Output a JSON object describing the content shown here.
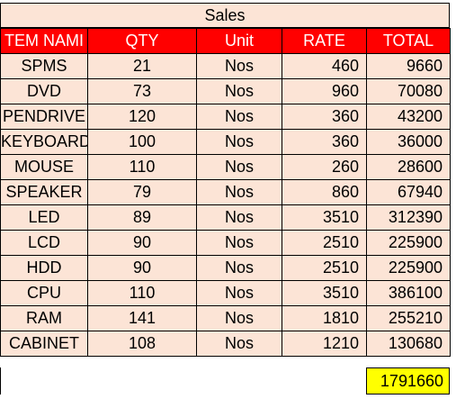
{
  "title": "Sales",
  "columns": [
    "TEM NAMI",
    "QTY",
    "Unit",
    "RATE",
    "TOTAL"
  ],
  "rows": [
    {
      "item": "SPMS",
      "qty": "21",
      "unit": "Nos",
      "rate": "460",
      "total": "9660"
    },
    {
      "item": "DVD",
      "qty": "73",
      "unit": "Nos",
      "rate": "960",
      "total": "70080"
    },
    {
      "item": "PENDRIVE",
      "qty": "120",
      "unit": "Nos",
      "rate": "360",
      "total": "43200"
    },
    {
      "item": "KEYBOARD",
      "qty": "100",
      "unit": "Nos",
      "rate": "360",
      "total": "36000"
    },
    {
      "item": "MOUSE",
      "qty": "110",
      "unit": "Nos",
      "rate": "260",
      "total": "28600"
    },
    {
      "item": "SPEAKER",
      "qty": "79",
      "unit": "Nos",
      "rate": "860",
      "total": "67940"
    },
    {
      "item": "LED",
      "qty": "89",
      "unit": "Nos",
      "rate": "3510",
      "total": "312390"
    },
    {
      "item": "LCD",
      "qty": "90",
      "unit": "Nos",
      "rate": "2510",
      "total": "225900"
    },
    {
      "item": "HDD",
      "qty": "90",
      "unit": "Nos",
      "rate": "2510",
      "total": "225900"
    },
    {
      "item": "CPU",
      "qty": "110",
      "unit": "Nos",
      "rate": "3510",
      "total": "386100"
    },
    {
      "item": "RAM",
      "qty": "141",
      "unit": "Nos",
      "rate": "1810",
      "total": "255210"
    },
    {
      "item": "CABINET",
      "qty": "108",
      "unit": "Nos",
      "rate": "1210",
      "total": "130680"
    }
  ],
  "grand_total": "1791660",
  "colors": {
    "header_bg": "#ff0000",
    "cell_bg": "#fce4d6",
    "grand_total_bg": "#ffff00"
  }
}
